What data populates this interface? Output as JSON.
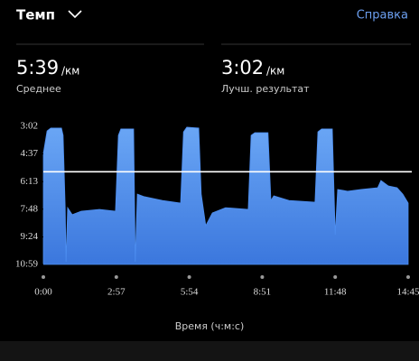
{
  "header": {
    "title": "Темп",
    "help": "Справка"
  },
  "stats": [
    {
      "value": "5:39",
      "unit": "/км",
      "label": "Среднее"
    },
    {
      "value": "3:02",
      "unit": "/км",
      "label": "Лучш. результат"
    }
  ],
  "chart_data": {
    "type": "area",
    "color": "#4d8ef0",
    "x_label": "Время (ч:м:с)",
    "y_reversed": true,
    "average_line": 339,
    "average_color": "#ffffff",
    "xlim": [
      0,
      885
    ],
    "xticks": [
      {
        "value": 0,
        "label": "0:00"
      },
      {
        "value": 177,
        "label": "2:57"
      },
      {
        "value": 354,
        "label": "5:54"
      },
      {
        "value": 531,
        "label": "8:51"
      },
      {
        "value": 708,
        "label": "11:48"
      },
      {
        "value": 885,
        "label": "14:45"
      }
    ],
    "ylim": [
      182,
      659
    ],
    "yticks": [
      {
        "value": 182,
        "label": "3:02"
      },
      {
        "value": 277,
        "label": "4:37"
      },
      {
        "value": 373,
        "label": "6:13"
      },
      {
        "value": 468,
        "label": "7:48"
      },
      {
        "value": 564,
        "label": "9:24"
      },
      {
        "value": 659,
        "label": "10:59"
      }
    ],
    "x": [
      0,
      9,
      18,
      44,
      48,
      53,
      55,
      59,
      70,
      92,
      136,
      175,
      182,
      188,
      219,
      223,
      228,
      245,
      289,
      333,
      340,
      348,
      377,
      383,
      394,
      410,
      442,
      497,
      504,
      513,
      545,
      552,
      559,
      596,
      659,
      666,
      675,
      701,
      708,
      714,
      738,
      771,
      811,
      819,
      837,
      858,
      872,
      885
    ],
    "values": [
      275,
      198,
      188,
      188,
      213,
      463,
      650,
      463,
      487,
      475,
      469,
      475,
      213,
      191,
      191,
      650,
      416,
      425,
      438,
      447,
      201,
      185,
      188,
      416,
      525,
      481,
      463,
      469,
      213,
      204,
      204,
      438,
      422,
      438,
      444,
      201,
      191,
      191,
      556,
      400,
      406,
      400,
      394,
      369,
      388,
      394,
      416,
      447
    ]
  }
}
